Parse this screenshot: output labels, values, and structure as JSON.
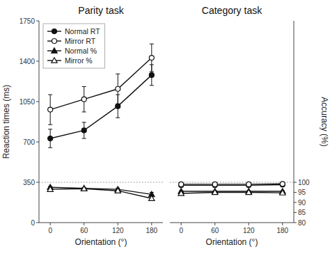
{
  "chart_data": [
    {
      "type": "line",
      "title": "Parity task",
      "xlabel": "Orientation (°)",
      "ylabel": "Reaction times (ms)",
      "x": [
        0,
        60,
        120,
        180
      ],
      "xlim": [
        -20,
        200
      ],
      "xticks": [
        0,
        60,
        120,
        180
      ],
      "ylim": [
        0,
        1750
      ],
      "yticks": [
        0,
        350,
        700,
        1050,
        1400,
        1750
      ],
      "y2lim": [
        80,
        180
      ],
      "hline": 350,
      "legend": "upper left",
      "series": [
        {
          "name": "Normal RT",
          "color": "#111111",
          "marker": "circle",
          "values": [
            730,
            800,
            1010,
            1280
          ],
          "errors": [
            80,
            70,
            100,
            90
          ]
        },
        {
          "name": "Mirror RT",
          "color": "#111111",
          "marker": "circle-open",
          "values": [
            980,
            1070,
            1160,
            1430
          ],
          "errors": [
            130,
            110,
            130,
            120
          ]
        },
        {
          "name": "Normal %",
          "color": "#111111",
          "marker": "triangle",
          "axis": "y2",
          "values": [
            97.5,
            97.0,
            96.5,
            94.0
          ],
          "errors": [
            0.5,
            0.4,
            0.6,
            1.0
          ]
        },
        {
          "name": "Mirror %",
          "color": "#111111",
          "marker": "triangle-open",
          "axis": "y2",
          "values": [
            96.5,
            96.8,
            95.8,
            92.0
          ],
          "errors": [
            0.4,
            0.4,
            0.5,
            0.9
          ]
        }
      ]
    },
    {
      "type": "line",
      "title": "Category task",
      "xlabel": "Orientation (°)",
      "y2label": "Accuracy (%)",
      "x": [
        0,
        60,
        120,
        180
      ],
      "xlim": [
        -20,
        200
      ],
      "xticks": [
        0,
        60,
        120,
        180
      ],
      "y2lim": [
        80,
        180
      ],
      "y2ticks": [
        80,
        85,
        90,
        95,
        100
      ],
      "hline": 100,
      "series": [
        {
          "color": "#111111",
          "marker": "circle",
          "axis": "y2",
          "values": [
            98.5,
            98.5,
            98.5,
            98.8
          ],
          "errors": [
            0.3,
            0.3,
            0.3,
            0.3
          ]
        },
        {
          "color": "#111111",
          "marker": "circle-open",
          "axis": "y2",
          "values": [
            99.0,
            99.0,
            99.0,
            99.2
          ],
          "errors": [
            0.3,
            0.3,
            0.3,
            0.3
          ]
        },
        {
          "color": "#111111",
          "marker": "triangle",
          "axis": "y2",
          "values": [
            95.5,
            95.5,
            95.5,
            95.5
          ],
          "errors": [
            0.3,
            0.3,
            0.3,
            0.3
          ]
        },
        {
          "color": "#111111",
          "marker": "triangle-open",
          "axis": "y2",
          "values": [
            94.5,
            95.0,
            95.0,
            94.8
          ],
          "errors": [
            0.3,
            0.3,
            0.3,
            0.3
          ]
        }
      ]
    }
  ]
}
